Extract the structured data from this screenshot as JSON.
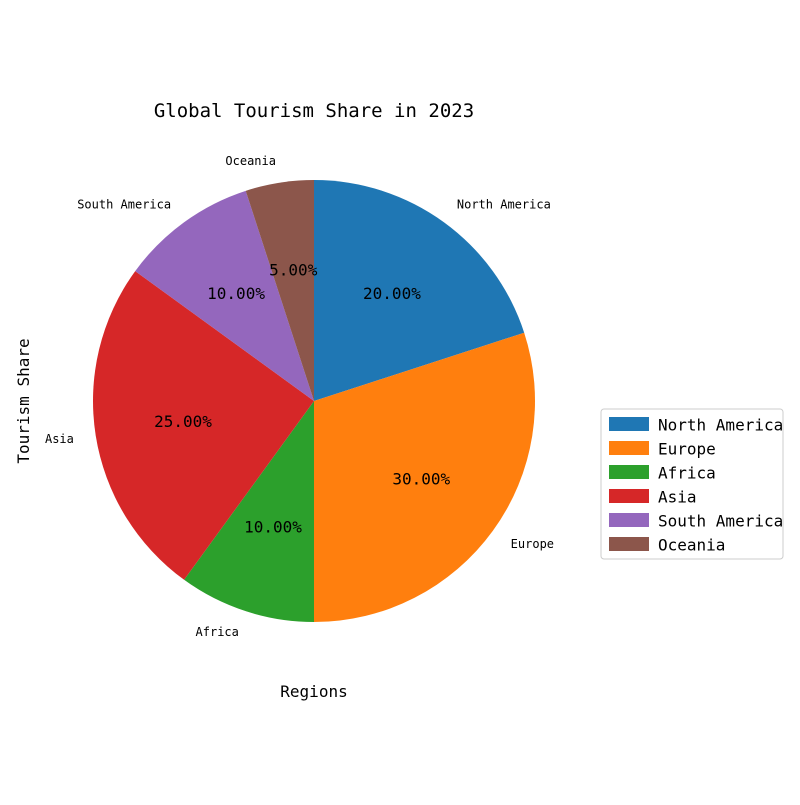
{
  "chart_data": {
    "type": "pie",
    "title": "Global Tourism Share in 2023",
    "xlabel": "Regions",
    "ylabel": "Tourism Share",
    "categories": [
      "North America",
      "Europe",
      "Africa",
      "Asia",
      "South America",
      "Oceania"
    ],
    "values": [
      20,
      30,
      10,
      25,
      10,
      5
    ],
    "pct_labels": [
      "20.00%",
      "30.00%",
      "10.00%",
      "25.00%",
      "10.00%",
      "5.00%"
    ],
    "colors": [
      "#1f77b4",
      "#ff7f0e",
      "#2ca02c",
      "#d62728",
      "#9467bd",
      "#8c564b"
    ],
    "start_angle": 90,
    "direction": "clockwise",
    "legend_position": "right"
  }
}
